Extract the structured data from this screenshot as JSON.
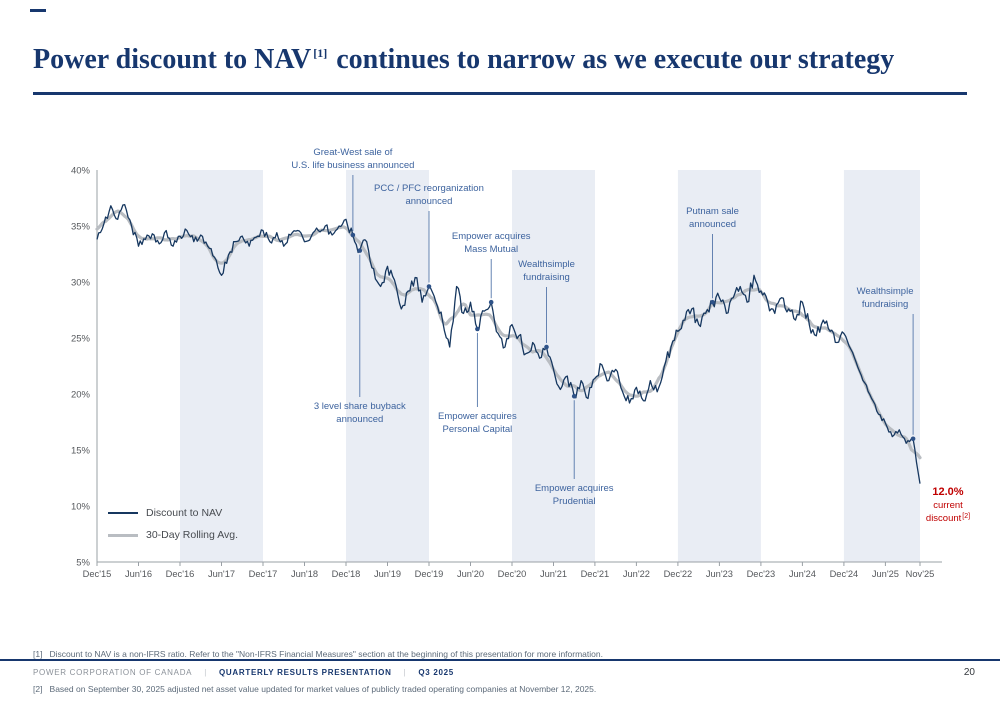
{
  "slide": {
    "title_part1": "Power discount to NAV",
    "title_sup": "[1]",
    "title_part2": " continues to narrow as we execute our strategy",
    "page_number": "20"
  },
  "legend": [
    {
      "label": "Discount to NAV",
      "color": "#16375f",
      "thickness": 2.5
    },
    {
      "label": "30-Day Rolling Avg.",
      "color": "#b9bdc2",
      "thickness": 3.5
    }
  ],
  "current_discount": {
    "value": "12.0%",
    "line2": "current",
    "line3": "discount",
    "sup": "[2]",
    "color": "#c00000"
  },
  "footnotes": [
    "[1]   Discount to NAV is a non-IFRS ratio. Refer to the \"Non-IFRS Financial Measures\" section at the beginning of this presentation for more information.",
    "[2]   Based on September 30, 2025 adjusted net asset value updated for market values of publicly traded operating companies at November 12, 2025."
  ],
  "footer": {
    "company": "POWER CORPORATION OF CANADA",
    "presentation": "QUARTERLY RESULTS PRESENTATION",
    "quarter": "Q3 2025",
    "separator": "|"
  },
  "chart_data": {
    "type": "line",
    "title": "",
    "xlabel": "",
    "ylabel": "",
    "ylim": [
      5,
      40
    ],
    "band_color": "#e9edf4",
    "grid": false,
    "legend_position": "bottom-left",
    "y_ticks": [
      {
        "label": "40%",
        "value": 40
      },
      {
        "label": "35%",
        "value": 35
      },
      {
        "label": "30%",
        "value": 30
      },
      {
        "label": "25%",
        "value": 25
      },
      {
        "label": "20%",
        "value": 20
      },
      {
        "label": "15%",
        "value": 15
      },
      {
        "label": "10%",
        "value": 10
      },
      {
        "label": "5%",
        "value": 5
      }
    ],
    "x_ticks": [
      {
        "label": "Dec'15",
        "month": 0
      },
      {
        "label": "Jun'16",
        "month": 6
      },
      {
        "label": "Dec'16",
        "month": 12
      },
      {
        "label": "Jun'17",
        "month": 18
      },
      {
        "label": "Dec'17",
        "month": 24
      },
      {
        "label": "Jun'18",
        "month": 30
      },
      {
        "label": "Dec'18",
        "month": 36
      },
      {
        "label": "Jun'19",
        "month": 42
      },
      {
        "label": "Dec'19",
        "month": 48
      },
      {
        "label": "Jun'20",
        "month": 54
      },
      {
        "label": "Dec'20",
        "month": 60
      },
      {
        "label": "Jun'21",
        "month": 66
      },
      {
        "label": "Dec'21",
        "month": 72
      },
      {
        "label": "Jun'22",
        "month": 78
      },
      {
        "label": "Dec'22",
        "month": 84
      },
      {
        "label": "Jun'23",
        "month": 90
      },
      {
        "label": "Dec'23",
        "month": 96
      },
      {
        "label": "Jun'24",
        "month": 102
      },
      {
        "label": "Dec'24",
        "month": 108
      },
      {
        "label": "Jun'25",
        "month": 114
      },
      {
        "label": "Nov'25",
        "month": 119
      }
    ],
    "shaded_year_spans": [
      [
        12,
        24
      ],
      [
        36,
        48
      ],
      [
        60,
        72
      ],
      [
        84,
        96
      ],
      [
        108,
        119
      ]
    ],
    "series": [
      {
        "name": "Discount to NAV",
        "color": "#16375f",
        "x_unit": "months since Dec 2015",
        "monthly_values": [
          33.8,
          35.2,
          36.8,
          35.6,
          36.9,
          35.0,
          33.2,
          33.8,
          34.3,
          33.4,
          34.6,
          33.2,
          34.1,
          34.6,
          33.6,
          34.2,
          33.2,
          32.2,
          30.6,
          32.4,
          33.6,
          34.1,
          33.2,
          34.0,
          34.6,
          33.6,
          34.4,
          33.2,
          34.2,
          34.6,
          33.6,
          34.1,
          34.6,
          35.0,
          34.2,
          35.0,
          35.6,
          34.2,
          32.8,
          33.6,
          31.2,
          29.6,
          31.4,
          30.2,
          27.6,
          29.2,
          30.4,
          28.2,
          29.6,
          28.2,
          26.4,
          24.2,
          29.6,
          27.2,
          28.2,
          25.8,
          27.4,
          28.2,
          25.4,
          24.2,
          26.2,
          25.2,
          23.6,
          24.6,
          23.2,
          24.2,
          22.2,
          20.4,
          21.6,
          19.8,
          21.2,
          19.6,
          21.4,
          22.6,
          21.2,
          22.2,
          20.2,
          19.2,
          20.6,
          19.4,
          21.2,
          20.2,
          22.4,
          24.2,
          25.6,
          26.6,
          27.6,
          26.2,
          27.2,
          28.2,
          28.6,
          27.2,
          28.6,
          29.6,
          28.2,
          30.6,
          29.2,
          28.2,
          27.2,
          28.6,
          27.6,
          26.6,
          28.2,
          26.2,
          25.2,
          26.6,
          25.6,
          24.6,
          25.4,
          24.0,
          22.4,
          21.0,
          19.6,
          18.2,
          17.4,
          16.2,
          16.8,
          15.6,
          16.0,
          12.0
        ]
      },
      {
        "name": "30-Day Rolling Avg.",
        "color": "#b9bdc2",
        "derived_from": "Discount to NAV",
        "smoothing": "30-day moving average"
      }
    ],
    "annotations": [
      {
        "label_lines": [
          "Great-West sale of",
          "U.S. life business announced"
        ],
        "month": 37,
        "side": "above",
        "text_top": 16
      },
      {
        "label_lines": [
          "3 level share buyback",
          "announced"
        ],
        "month": 38,
        "side": "below",
        "text_top": 270
      },
      {
        "label_lines": [
          "PCC / PFC reorganization",
          "announced"
        ],
        "month": 48,
        "side": "above",
        "text_top": 52
      },
      {
        "label_lines": [
          "Empower acquires",
          "Personal Capital"
        ],
        "month": 55,
        "side": "below",
        "text_top": 280
      },
      {
        "label_lines": [
          "Empower acquires",
          "Mass Mutual"
        ],
        "month": 57,
        "side": "above",
        "text_top": 100
      },
      {
        "label_lines": [
          "Wealthsimple",
          "fundraising"
        ],
        "month": 65,
        "side": "above",
        "text_top": 128
      },
      {
        "label_lines": [
          "Empower acquires",
          "Prudential"
        ],
        "month": 69,
        "side": "below",
        "text_top": 352
      },
      {
        "label_lines": [
          "Putnam sale",
          "announced"
        ],
        "month": 89,
        "side": "above",
        "text_top": 75
      },
      {
        "label_lines": [
          "Wealthsimple",
          "fundraising"
        ],
        "month": 118,
        "side": "above",
        "text_top": 155,
        "dx": -28
      }
    ]
  }
}
